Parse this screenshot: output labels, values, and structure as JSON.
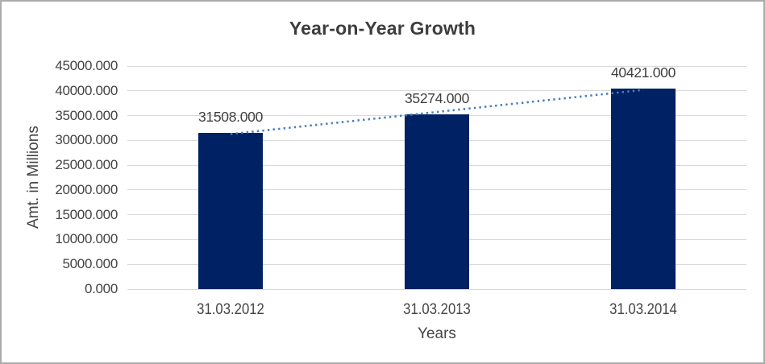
{
  "frame": {
    "background": "#ffffff",
    "border_color": "#ababab"
  },
  "chart_data": {
    "type": "bar",
    "title": "Year-on-Year Growth",
    "xlabel": "Years",
    "ylabel": "Amt. in Millions",
    "categories": [
      "31.03.2012",
      "31.03.2013",
      "31.03.2014"
    ],
    "values": [
      31508,
      35274,
      40421
    ],
    "data_labels": [
      "31508.000",
      "35274.000",
      "40421.000"
    ],
    "ylim": [
      0,
      45000
    ],
    "ytick_step": 5000,
    "ytick_labels": [
      "0.000",
      "5000.000",
      "10000.000",
      "15000.000",
      "20000.000",
      "25000.000",
      "30000.000",
      "35000.000",
      "40000.000",
      "45000.000"
    ],
    "grid": true,
    "legend": "none",
    "trendline": {
      "type": "linear",
      "style": "dotted"
    },
    "colors": {
      "bar": "#002163",
      "trendline": "#4a7ebb",
      "gridline": "#d9d9d9",
      "axis_text": "#444444",
      "label_text": "#404040",
      "title_text": "#3d3d3d"
    }
  }
}
